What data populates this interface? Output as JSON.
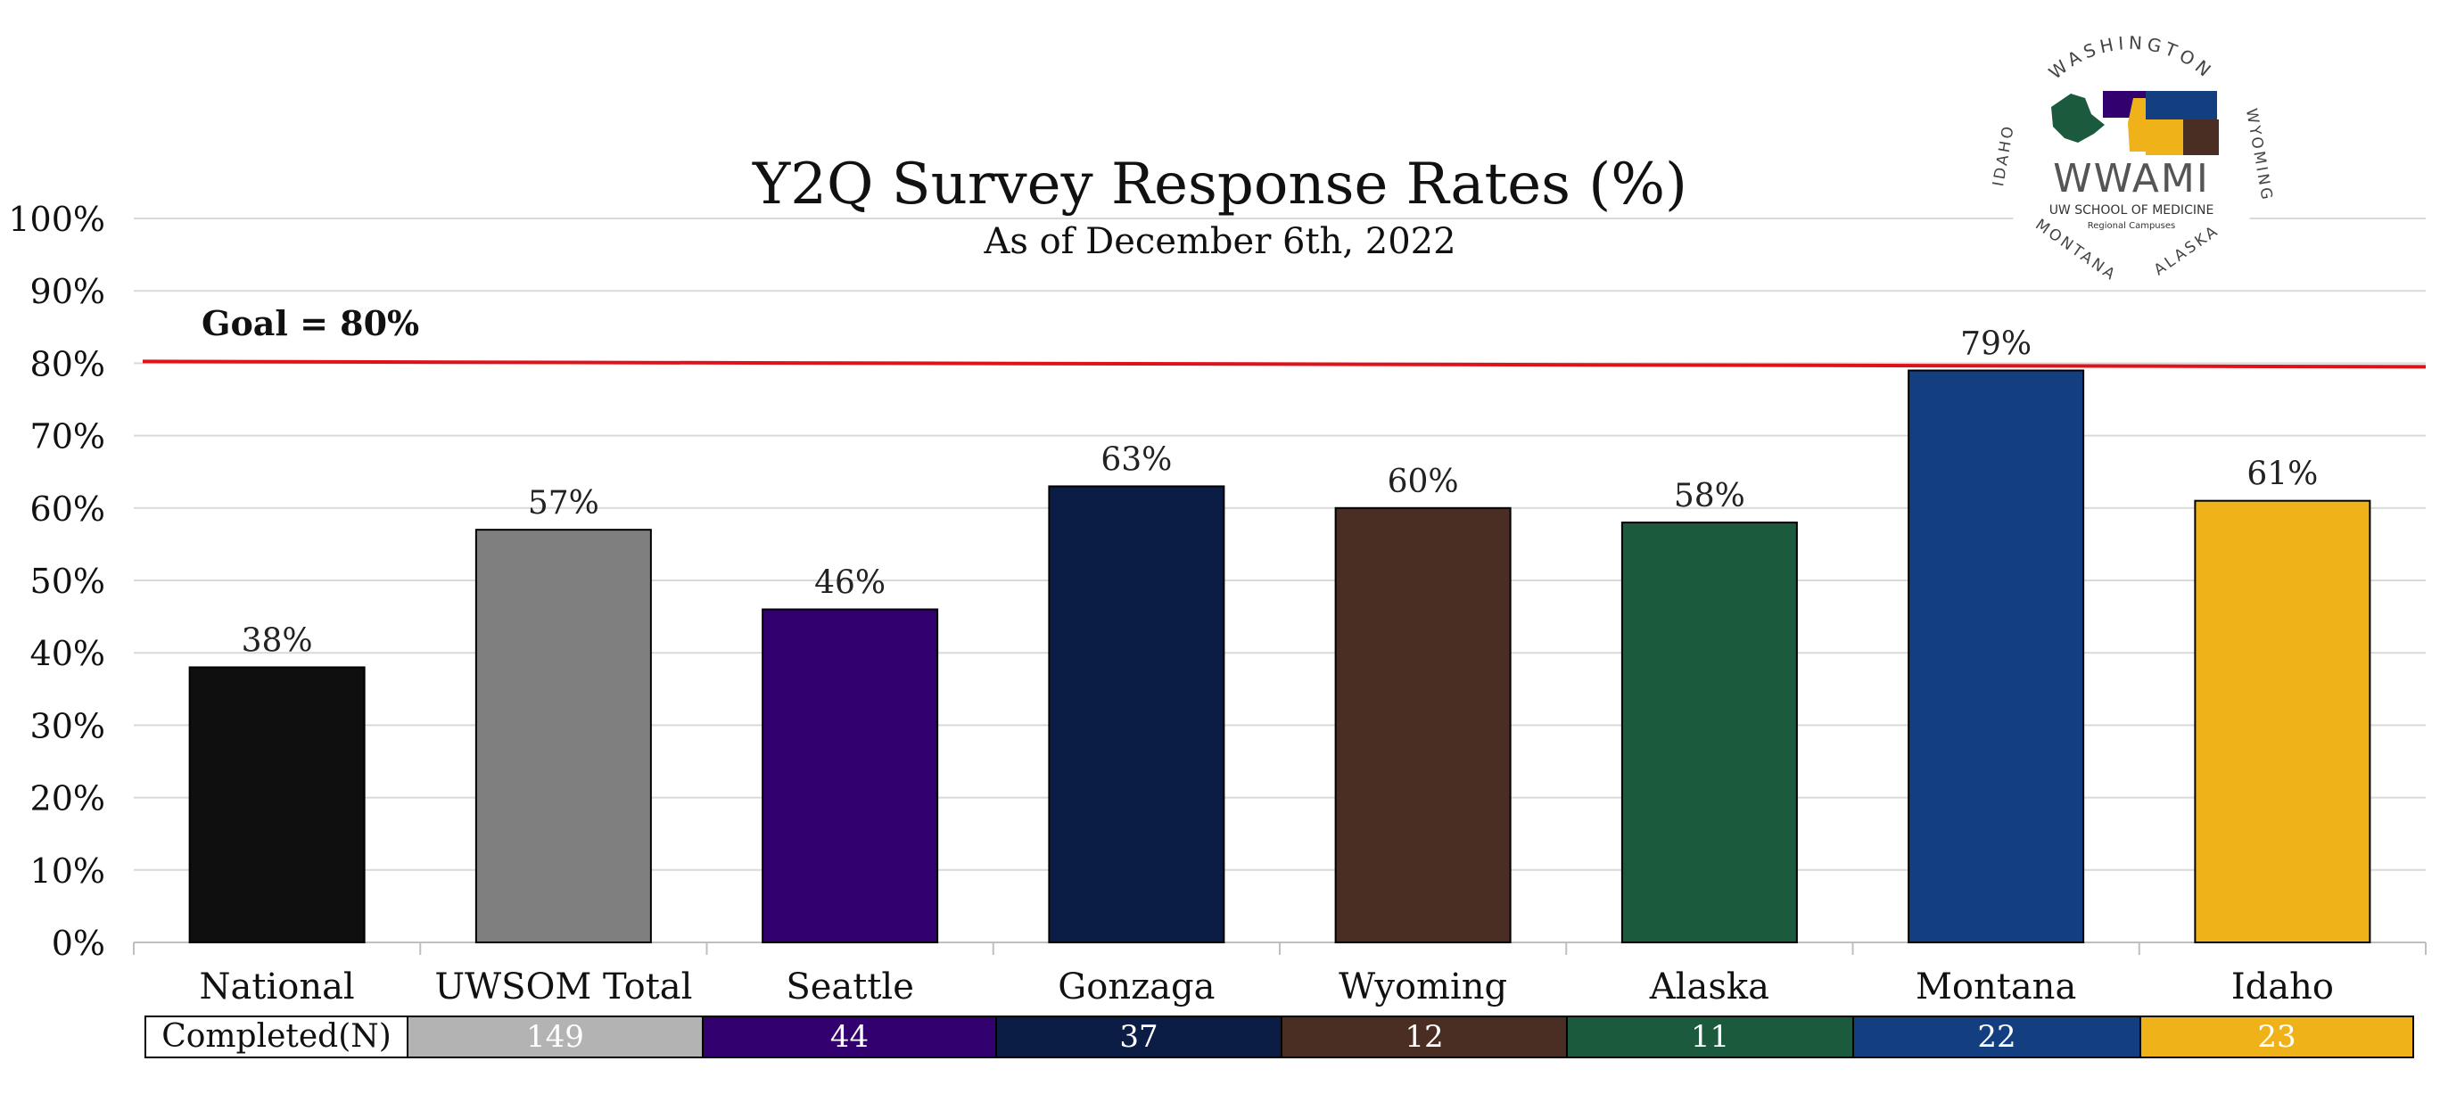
{
  "chart_data": {
    "type": "bar",
    "title": "Y2Q Survey Response Rates (%)",
    "subtitle": "As of December 6th, 2022",
    "categories": [
      "National",
      "UWSOM Total",
      "Seattle",
      "Gonzaga",
      "Wyoming",
      "Alaska",
      "Montana",
      "Idaho"
    ],
    "values": [
      38,
      57,
      46,
      63,
      60,
      58,
      79,
      61
    ],
    "value_labels": [
      "38%",
      "57%",
      "46%",
      "63%",
      "60%",
      "58%",
      "79%",
      "61%"
    ],
    "colors": [
      "#0f0f0f",
      "#7f7f7f",
      "#33006f",
      "#0c1d45",
      "#4b2e23",
      "#1b5a3d",
      "#133f80",
      "#efb219"
    ],
    "y_ticks": [
      "0%",
      "10%",
      "20%",
      "30%",
      "40%",
      "50%",
      "60%",
      "70%",
      "80%",
      "90%",
      "100%"
    ],
    "ylim": [
      0,
      100
    ],
    "grid": true,
    "goal": {
      "value": 80,
      "label": "Goal = 80%",
      "color": "#e0111a"
    },
    "completed_table": {
      "header": "Completed(N)",
      "values": [
        "149",
        "44",
        "37",
        "12",
        "11",
        "22",
        "23"
      ],
      "colors": [
        "#b3b3b3",
        "#33006f",
        "#0c1d45",
        "#4b2e23",
        "#1b5a3d",
        "#133f80",
        "#efb219"
      ]
    }
  },
  "logo": {
    "arc_top": "WASHINGTON",
    "arc_left": "IDAHO",
    "arc_right": "WYOMING",
    "arc_bottom_left": "MONTANA",
    "arc_bottom_right": "ALASKA",
    "name": "WWAMI",
    "line1": "UW SCHOOL OF MEDICINE",
    "line2": "Regional Campuses"
  }
}
